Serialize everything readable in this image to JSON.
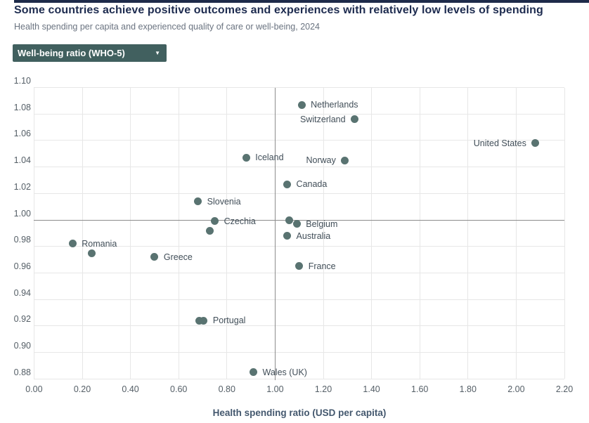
{
  "header": {
    "title": "Some countries achieve positive outcomes and experiences with relatively low levels of spending",
    "subtitle": "Health spending per capita and experienced quality of care or well-being, 2024"
  },
  "controls": {
    "metric_dropdown": {
      "selected": "Well-being ratio (WHO-5)",
      "bg_color": "#41605f",
      "text_color": "#ffffff",
      "arrow": "▼"
    }
  },
  "chart_data": {
    "type": "scatter",
    "xlabel": "Health spending ratio (USD per capita)",
    "ylabel": "Well-being ratio (WHO-5)",
    "xlim": [
      0.0,
      2.2
    ],
    "ylim": [
      0.88,
      1.1
    ],
    "x_ticks": [
      {
        "value": 0.0,
        "label": "0.00"
      },
      {
        "value": 0.2,
        "label": "0.20"
      },
      {
        "value": 0.4,
        "label": "0.40"
      },
      {
        "value": 0.6,
        "label": "0.60"
      },
      {
        "value": 0.8,
        "label": "0.80"
      },
      {
        "value": 1.0,
        "label": "1.00"
      },
      {
        "value": 1.2,
        "label": "1.20"
      },
      {
        "value": 1.4,
        "label": "1.40"
      },
      {
        "value": 1.6,
        "label": "1.60"
      },
      {
        "value": 1.8,
        "label": "1.80"
      },
      {
        "value": 2.0,
        "label": "2.00"
      },
      {
        "value": 2.2,
        "label": "2.20"
      }
    ],
    "y_ticks": [
      {
        "value": 1.1,
        "label": "1.10"
      },
      {
        "value": 1.08,
        "label": "1.08"
      },
      {
        "value": 1.06,
        "label": "1.06"
      },
      {
        "value": 1.04,
        "label": "1.04"
      },
      {
        "value": 1.02,
        "label": "1.02"
      },
      {
        "value": 1.0,
        "label": "1.00"
      },
      {
        "value": 0.98,
        "label": "0.98"
      },
      {
        "value": 0.96,
        "label": "0.96"
      },
      {
        "value": 0.94,
        "label": "0.94"
      },
      {
        "value": 0.92,
        "label": "0.92"
      },
      {
        "value": 0.9,
        "label": "0.90"
      },
      {
        "value": 0.88,
        "label": "0.88"
      }
    ],
    "reference_lines": {
      "x": 1.0,
      "y": 1.0
    },
    "grid": true,
    "point_color": "#597371",
    "label_color": "#414e58",
    "points": [
      {
        "label": "Netherlands",
        "x": 1.11,
        "y": 1.087,
        "label_side": "right"
      },
      {
        "label": "Switzerland",
        "x": 1.33,
        "y": 1.076,
        "label_side": "left"
      },
      {
        "label": "United States",
        "x": 2.08,
        "y": 1.058,
        "label_side": "left"
      },
      {
        "label": "Iceland",
        "x": 0.88,
        "y": 1.047,
        "label_side": "right"
      },
      {
        "label": "Norway",
        "x": 1.29,
        "y": 1.045,
        "label_side": "left"
      },
      {
        "label": "Canada",
        "x": 1.05,
        "y": 1.027,
        "label_side": "right"
      },
      {
        "label": "Slovenia",
        "x": 0.68,
        "y": 1.014,
        "label_side": "right"
      },
      {
        "label": "",
        "x": 1.06,
        "y": 1.0,
        "label_side": "none"
      },
      {
        "label": "Czechia",
        "x": 0.75,
        "y": 0.999,
        "label_side": "right"
      },
      {
        "label": "Belgium",
        "x": 1.09,
        "y": 0.997,
        "label_side": "right"
      },
      {
        "label": "",
        "x": 0.73,
        "y": 0.992,
        "label_side": "none"
      },
      {
        "label": "Australia",
        "x": 1.05,
        "y": 0.988,
        "label_side": "right"
      },
      {
        "label": "Romania",
        "x": 0.16,
        "y": 0.982,
        "label_side": "right"
      },
      {
        "label": "",
        "x": 0.24,
        "y": 0.975,
        "label_side": "none"
      },
      {
        "label": "Greece",
        "x": 0.5,
        "y": 0.972,
        "label_side": "right"
      },
      {
        "label": "France",
        "x": 1.1,
        "y": 0.965,
        "label_side": "right"
      },
      {
        "label": "",
        "x": 0.685,
        "y": 0.924,
        "label_side": "none"
      },
      {
        "label": "Portugal",
        "x": 0.704,
        "y": 0.924,
        "label_side": "right"
      },
      {
        "label": "Wales (UK)",
        "x": 0.91,
        "y": 0.885,
        "label_side": "right"
      }
    ]
  }
}
